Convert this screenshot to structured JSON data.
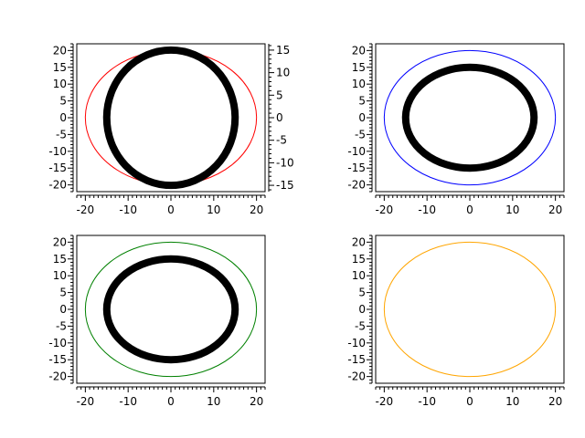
{
  "chart_data": [
    {
      "type": "line",
      "xlim": [
        -22,
        22
      ],
      "ylim": [
        -22,
        22
      ],
      "y2lim": [
        -16.4,
        16.4
      ],
      "x_ticks": [
        "-20",
        "-10",
        "0",
        "10",
        "20"
      ],
      "y_ticks": [
        "20",
        "15",
        "10",
        "5",
        "0",
        "-5",
        "-10",
        "-15",
        "-20"
      ],
      "y2_ticks": [
        "15",
        "10",
        "5",
        "0",
        "-5",
        "-10",
        "-15"
      ],
      "series": [
        {
          "shape": "ellipse",
          "center": [
            0,
            0
          ],
          "rx": 20,
          "ry": 20,
          "color": "#ff0000",
          "axis": "left",
          "thick": false
        },
        {
          "shape": "ellipse",
          "center": [
            0,
            0
          ],
          "rx": 15,
          "ry": 15,
          "color": "#000000",
          "axis": "right",
          "thick": true
        }
      ]
    },
    {
      "type": "line",
      "xlim": [
        -22,
        22
      ],
      "ylim": [
        -22,
        22
      ],
      "x_ticks": [
        "-20",
        "-10",
        "0",
        "10",
        "20"
      ],
      "y_ticks": [
        "20",
        "15",
        "10",
        "5",
        "0",
        "-5",
        "-10",
        "-15",
        "-20"
      ],
      "series": [
        {
          "shape": "ellipse",
          "center": [
            0,
            0
          ],
          "rx": 20,
          "ry": 20,
          "color": "#0000ff",
          "axis": "left",
          "thick": false
        },
        {
          "shape": "ellipse",
          "center": [
            0,
            0
          ],
          "rx": 15,
          "ry": 15,
          "color": "#000000",
          "axis": "left",
          "thick": true
        }
      ]
    },
    {
      "type": "line",
      "xlim": [
        -22,
        22
      ],
      "ylim": [
        -22,
        22
      ],
      "x_ticks": [
        "-20",
        "-10",
        "0",
        "10",
        "20"
      ],
      "y_ticks": [
        "20",
        "15",
        "10",
        "5",
        "0",
        "-5",
        "-10",
        "-15",
        "-20"
      ],
      "series": [
        {
          "shape": "ellipse",
          "center": [
            0,
            0
          ],
          "rx": 20,
          "ry": 20,
          "color": "#008000",
          "axis": "left",
          "thick": false
        },
        {
          "shape": "ellipse",
          "center": [
            0,
            0
          ],
          "rx": 15,
          "ry": 15,
          "color": "#000000",
          "axis": "left",
          "thick": true
        }
      ]
    },
    {
      "type": "line",
      "xlim": [
        -22,
        22
      ],
      "ylim": [
        -22,
        22
      ],
      "x_ticks": [
        "-20",
        "-10",
        "0",
        "10",
        "20"
      ],
      "y_ticks": [
        "20",
        "15",
        "10",
        "5",
        "0",
        "-5",
        "-10",
        "-15",
        "-20"
      ],
      "series": [
        {
          "shape": "ellipse",
          "center": [
            0,
            0
          ],
          "rx": 20,
          "ry": 20,
          "color": "#ffa500",
          "axis": "left",
          "thick": false
        }
      ]
    }
  ]
}
